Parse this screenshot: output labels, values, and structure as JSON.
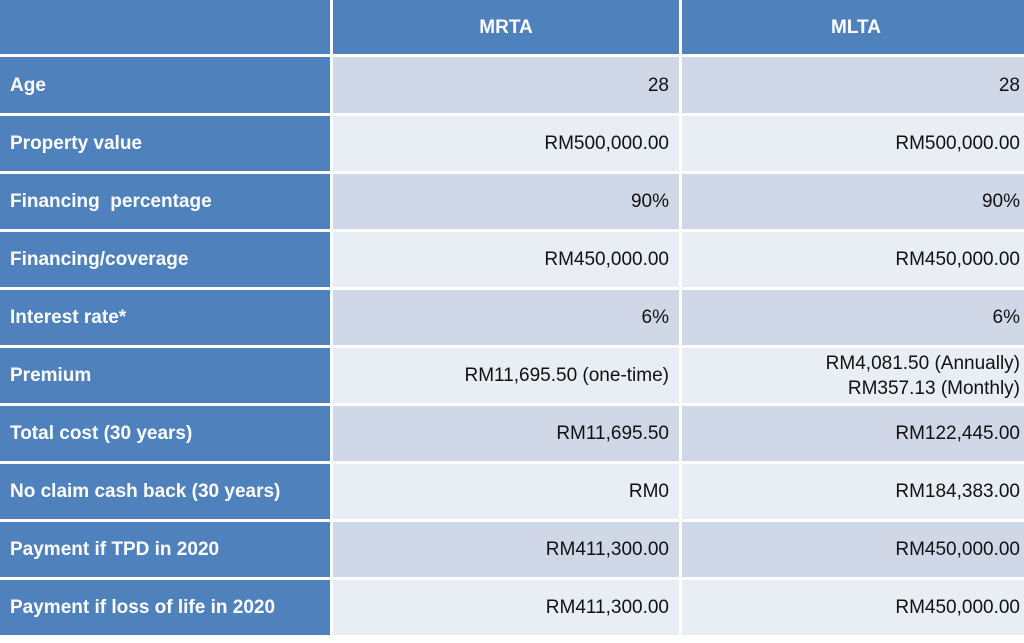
{
  "table": {
    "header": {
      "corner": "",
      "columns": [
        "MRTA",
        "MLTA"
      ]
    },
    "rows": [
      {
        "label": "Age",
        "mrta": "28",
        "mlta": "28"
      },
      {
        "label": "Property value",
        "mrta": "RM500,000.00",
        "mlta": "RM500,000.00"
      },
      {
        "label": "Financing  percentage",
        "mrta": "90%",
        "mlta": "90%"
      },
      {
        "label": "Financing/coverage",
        "mrta": "RM450,000.00",
        "mlta": "RM450,000.00"
      },
      {
        "label": "Interest rate*",
        "mrta": "6%",
        "mlta": "6%"
      },
      {
        "label": "Premium",
        "mrta": "RM11,695.50 (one-time)",
        "mlta_lines": [
          "RM4,081.50 (Annually)",
          "RM357.13 (Monthly)"
        ]
      },
      {
        "label": "Total cost (30 years)",
        "mrta": "RM11,695.50",
        "mlta": "RM122,445.00"
      },
      {
        "label": "No claim cash back (30 years)",
        "mrta": "RM0",
        "mlta": "RM184,383.00"
      },
      {
        "label": "Payment if TPD in 2020",
        "mrta": "RM411,300.00",
        "mlta": "RM450,000.00"
      },
      {
        "label": "Payment if loss of life in 2020",
        "mrta": "RM411,300.00",
        "mlta": "RM450,000.00"
      }
    ]
  },
  "colors": {
    "header_bg": "#4f81bd",
    "row_dark": "#d0d8e8",
    "row_light": "#e9edf4",
    "label_text": "#ffffff",
    "value_text": "#111111"
  }
}
